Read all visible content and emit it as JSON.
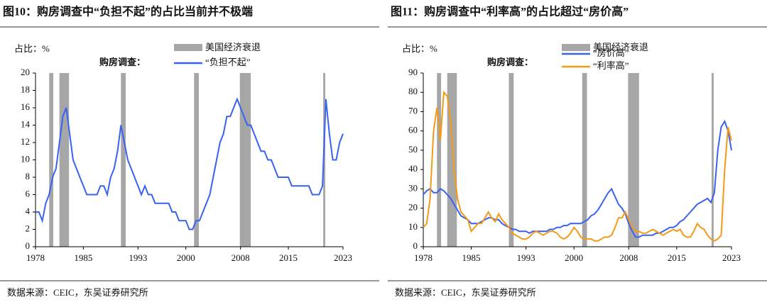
{
  "chart_data": [
    {
      "type": "line",
      "title": "图10：购房调查中“负担不起”的占比当前并不极端",
      "unit_label": "占比：%",
      "legend_title": "购房调查：",
      "source": "数据来源：CEIC，东吴证券研究所",
      "bands": {
        "name": "美国经济衰退",
        "color": "#a6a6a6",
        "ranges": [
          [
            1980.0,
            1980.6
          ],
          [
            1981.5,
            1982.9
          ],
          [
            1990.5,
            1991.2
          ],
          [
            2001.2,
            2001.9
          ],
          [
            2007.9,
            2009.5
          ],
          [
            2020.1,
            2020.4
          ]
        ]
      },
      "x": [
        1978,
        1978.5,
        1979,
        1979.5,
        1980,
        1980.5,
        1981,
        1981.5,
        1982,
        1982.5,
        1983,
        1983.5,
        1984,
        1984.5,
        1985,
        1985.5,
        1986,
        1986.5,
        1987,
        1987.5,
        1988,
        1988.5,
        1989,
        1989.5,
        1990,
        1990.5,
        1991,
        1991.5,
        1992,
        1992.5,
        1993,
        1993.5,
        1994,
        1994.5,
        1995,
        1995.5,
        1996,
        1996.5,
        1997,
        1997.5,
        1998,
        1998.5,
        1999,
        1999.5,
        2000,
        2000.5,
        2001,
        2001.5,
        2002,
        2002.5,
        2003,
        2003.5,
        2004,
        2004.5,
        2005,
        2005.5,
        2006,
        2006.5,
        2007,
        2007.5,
        2008,
        2008.5,
        2009,
        2009.5,
        2010,
        2010.5,
        2011,
        2011.5,
        2012,
        2012.5,
        2013,
        2013.5,
        2014,
        2014.5,
        2015,
        2015.5,
        2016,
        2016.5,
        2017,
        2017.5,
        2018,
        2018.5,
        2019,
        2019.5,
        2020,
        2020.5,
        2021,
        2021.5,
        2022,
        2022.5,
        2023
      ],
      "series": [
        {
          "name": "“负担不起”",
          "color": "#3a62f2",
          "values": [
            4,
            4,
            3,
            5,
            6,
            8,
            9,
            12,
            15,
            16,
            13,
            10,
            9,
            8,
            7,
            6,
            6,
            6,
            6,
            7,
            7,
            6,
            8,
            9,
            11,
            14,
            12,
            10,
            9,
            8,
            7,
            6,
            7,
            6,
            6,
            5,
            5,
            5,
            5,
            5,
            4,
            4,
            3,
            3,
            3,
            2,
            2,
            3,
            3,
            4,
            5,
            6,
            8,
            10,
            12,
            13,
            15,
            15,
            16,
            17,
            16,
            15,
            14,
            14,
            13,
            12,
            11,
            11,
            10,
            10,
            9,
            8,
            8,
            8,
            8,
            7,
            7,
            7,
            7,
            7,
            7,
            6,
            6,
            6,
            7,
            17,
            13,
            10,
            10,
            12,
            13
          ]
        }
      ],
      "xlim": [
        1978,
        2023
      ],
      "xticks": [
        1978,
        1985,
        1993,
        2000,
        2008,
        2015,
        2023
      ],
      "ylim": [
        0,
        20
      ],
      "yticks": [
        0,
        2,
        4,
        6,
        8,
        10,
        12,
        14,
        16,
        18,
        20
      ]
    },
    {
      "type": "line",
      "title": "图11：购房调查中“利率高”的占比超过“房价高”",
      "unit_label": "占比：%",
      "legend_title": "购房调查：",
      "source": "数据来源：CEIC，东吴证券研究所",
      "bands": {
        "name": "美国经济衰退",
        "color": "#a6a6a6",
        "ranges": [
          [
            1980.0,
            1980.6
          ],
          [
            1981.5,
            1982.9
          ],
          [
            1990.5,
            1991.2
          ],
          [
            2001.2,
            2001.9
          ],
          [
            2007.9,
            2009.5
          ],
          [
            2020.1,
            2020.4
          ]
        ]
      },
      "x": [
        1978,
        1978.5,
        1979,
        1979.5,
        1980,
        1980.5,
        1981,
        1981.5,
        1982,
        1982.5,
        1983,
        1983.5,
        1984,
        1984.5,
        1985,
        1985.5,
        1986,
        1986.5,
        1987,
        1987.5,
        1988,
        1988.5,
        1989,
        1989.5,
        1990,
        1990.5,
        1991,
        1991.5,
        1992,
        1992.5,
        1993,
        1993.5,
        1994,
        1994.5,
        1995,
        1995.5,
        1996,
        1996.5,
        1997,
        1997.5,
        1998,
        1998.5,
        1999,
        1999.5,
        2000,
        2000.5,
        2001,
        2001.5,
        2002,
        2002.5,
        2003,
        2003.5,
        2004,
        2004.5,
        2005,
        2005.5,
        2006,
        2006.5,
        2007,
        2007.5,
        2008,
        2008.5,
        2009,
        2009.5,
        2010,
        2010.5,
        2011,
        2011.5,
        2012,
        2012.5,
        2013,
        2013.5,
        2014,
        2014.5,
        2015,
        2015.5,
        2016,
        2016.5,
        2017,
        2017.5,
        2018,
        2018.5,
        2019,
        2019.5,
        2020,
        2020.5,
        2021,
        2021.5,
        2022,
        2022.5,
        2023
      ],
      "series": [
        {
          "name": "“房价高”",
          "color": "#3a62f2",
          "values": [
            27,
            29,
            30,
            28,
            28,
            30,
            29,
            27,
            25,
            22,
            19,
            16,
            15,
            14,
            12,
            12,
            12,
            13,
            14,
            15,
            15,
            14,
            14,
            12,
            11,
            10,
            9,
            9,
            8,
            8,
            8,
            7,
            8,
            8,
            8,
            8,
            8,
            9,
            9,
            10,
            10,
            11,
            11,
            12,
            12,
            12,
            12,
            13,
            14,
            16,
            17,
            19,
            22,
            25,
            28,
            30,
            26,
            22,
            20,
            17,
            12,
            8,
            5,
            5,
            6,
            6,
            6,
            6,
            7,
            7,
            8,
            9,
            10,
            10,
            11,
            13,
            14,
            16,
            18,
            20,
            22,
            23,
            24,
            25,
            23,
            28,
            50,
            62,
            65,
            60,
            50
          ]
        },
        {
          "name": "“利率高”",
          "color": "#f59a16",
          "values": [
            10,
            12,
            25,
            60,
            72,
            55,
            80,
            78,
            65,
            40,
            25,
            18,
            16,
            14,
            8,
            10,
            12,
            12,
            15,
            18,
            15,
            13,
            17,
            14,
            12,
            10,
            7,
            6,
            5,
            4,
            4,
            5,
            7,
            8,
            7,
            6,
            7,
            8,
            8,
            7,
            5,
            4,
            5,
            7,
            10,
            8,
            5,
            4,
            4,
            4,
            3,
            3,
            4,
            5,
            5,
            6,
            10,
            15,
            15,
            18,
            14,
            10,
            8,
            8,
            7,
            7,
            8,
            9,
            8,
            7,
            6,
            7,
            8,
            9,
            8,
            9,
            6,
            5,
            5,
            8,
            12,
            10,
            9,
            6,
            4,
            3,
            4,
            6,
            40,
            62,
            55
          ]
        }
      ],
      "xlim": [
        1978,
        2023
      ],
      "xticks": [
        1978,
        1985,
        1993,
        2000,
        2008,
        2015,
        2023
      ],
      "ylim": [
        0,
        90
      ],
      "yticks": [
        0,
        10,
        20,
        30,
        40,
        50,
        60,
        70,
        80,
        90
      ]
    }
  ]
}
